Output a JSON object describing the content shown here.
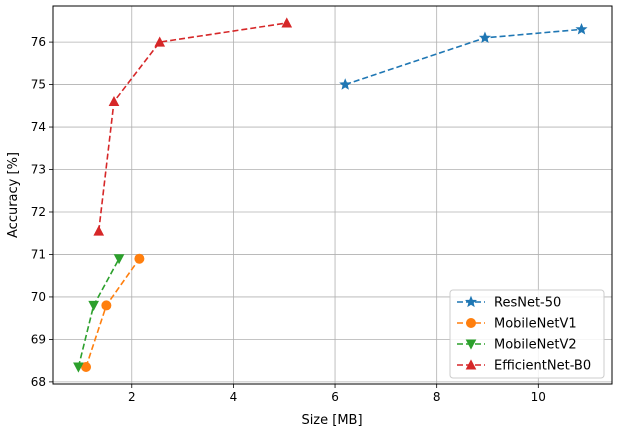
{
  "chart_data": {
    "type": "line",
    "xlabel": "Size [MB]",
    "ylabel": "Accuracy [%]",
    "xlim": [
      0.45,
      11.45
    ],
    "ylim": [
      67.95,
      76.85
    ],
    "xticks": [
      2,
      4,
      6,
      8,
      10
    ],
    "yticks": [
      68,
      69,
      70,
      71,
      72,
      73,
      74,
      75,
      76
    ],
    "grid": true,
    "legend_position": "lower-right",
    "series": [
      {
        "name": "ResNet-50",
        "color": "#1f77b4",
        "marker": "star",
        "x": [
          6.2,
          8.95,
          10.85
        ],
        "y": [
          75.0,
          76.1,
          76.3
        ]
      },
      {
        "name": "MobileNetV1",
        "color": "#ff7f0e",
        "marker": "circle",
        "x": [
          1.1,
          1.5,
          2.15
        ],
        "y": [
          68.35,
          69.8,
          70.9
        ]
      },
      {
        "name": "MobileNetV2",
        "color": "#2ca02c",
        "marker": "triangle-down",
        "x": [
          0.95,
          1.25,
          1.75
        ],
        "y": [
          68.35,
          69.8,
          70.9
        ]
      },
      {
        "name": "EfficientNet-B0",
        "color": "#d62728",
        "marker": "triangle-up",
        "x": [
          1.35,
          1.65,
          2.55,
          5.05
        ],
        "y": [
          71.55,
          74.6,
          76.0,
          76.45
        ]
      }
    ]
  }
}
